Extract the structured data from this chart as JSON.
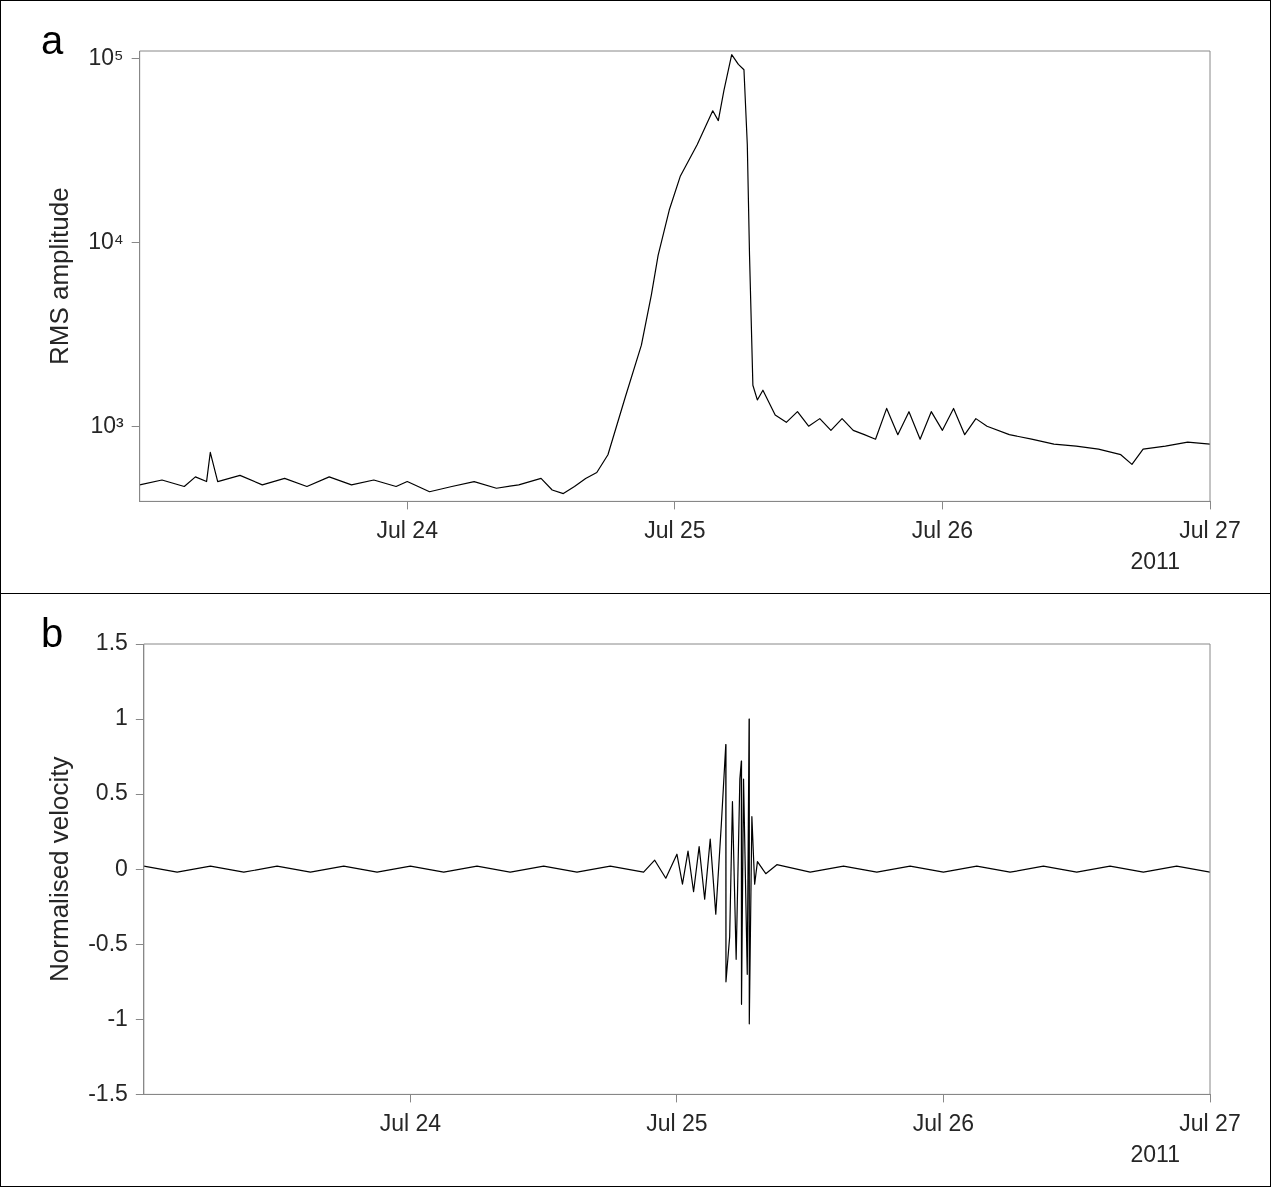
{
  "chart_data": [
    {
      "type": "line",
      "title": "a",
      "ylabel": "RMS amplitude",
      "annotations": [
        "2011"
      ],
      "log": true,
      "grid": false,
      "legend": false,
      "marker": "none",
      "line_style": "solid",
      "xlim": [
        "2011-07-23",
        "2011-07-27"
      ],
      "xticks": [
        {
          "value": "2011-07-24",
          "label": "Jul 24"
        },
        {
          "value": "2011-07-25",
          "label": "Jul 25"
        },
        {
          "value": "2011-07-26",
          "label": "Jul 26"
        },
        {
          "value": "2011-07-27",
          "label": "Jul 27"
        }
      ],
      "ylim": [
        390,
        110000
      ],
      "yticks": [
        {
          "value": 1000,
          "label": "10³"
        },
        {
          "value": 10000,
          "label": "10⁴"
        },
        {
          "value": 100000,
          "label": "10⁵"
        }
      ],
      "x": [
        "2011-07-23T00:00",
        "2011-07-23T02:00",
        "2011-07-23T04:00",
        "2011-07-23T05:00",
        "2011-07-23T06:00",
        "2011-07-23T06:20",
        "2011-07-23T07:00",
        "2011-07-23T09:00",
        "2011-07-23T11:00",
        "2011-07-23T13:00",
        "2011-07-23T15:00",
        "2011-07-23T17:00",
        "2011-07-23T19:00",
        "2011-07-23T21:00",
        "2011-07-23T23:00",
        "2011-07-24T00:00",
        "2011-07-24T02:00",
        "2011-07-24T04:00",
        "2011-07-24T06:00",
        "2011-07-24T08:00",
        "2011-07-24T10:00",
        "2011-07-24T12:00",
        "2011-07-24T13:00",
        "2011-07-24T14:00",
        "2011-07-24T15:00",
        "2011-07-24T16:00",
        "2011-07-24T17:00",
        "2011-07-24T18:00",
        "2011-07-24T19:36",
        "2011-07-24T21:00",
        "2011-07-24T21:54",
        "2011-07-24T22:30",
        "2011-07-24T23:30",
        "2011-07-25T00:30",
        "2011-07-25T02:00",
        "2011-07-25T03:24",
        "2011-07-25T03:54",
        "2011-07-25T04:24",
        "2011-07-25T05:06",
        "2011-07-25T05:42",
        "2011-07-25T06:12",
        "2011-07-25T06:30",
        "2011-07-25T06:42",
        "2011-07-25T07:00",
        "2011-07-25T07:24",
        "2011-07-25T07:54",
        "2011-07-25T09:00",
        "2011-07-25T10:00",
        "2011-07-25T11:00",
        "2011-07-25T12:00",
        "2011-07-25T13:00",
        "2011-07-25T14:00",
        "2011-07-25T15:00",
        "2011-07-25T16:00",
        "2011-07-25T17:00",
        "2011-07-25T18:00",
        "2011-07-25T19:00",
        "2011-07-25T20:00",
        "2011-07-25T21:00",
        "2011-07-25T22:00",
        "2011-07-25T23:00",
        "2011-07-26T00:00",
        "2011-07-26T01:00",
        "2011-07-26T02:00",
        "2011-07-26T03:00",
        "2011-07-26T04:00",
        "2011-07-26T06:00",
        "2011-07-26T08:00",
        "2011-07-26T10:00",
        "2011-07-26T12:00",
        "2011-07-26T14:00",
        "2011-07-26T16:00",
        "2011-07-26T17:00",
        "2011-07-26T18:00",
        "2011-07-26T20:00",
        "2011-07-26T22:00",
        "2011-07-27T00:00"
      ],
      "series": [
        {
          "color": "#000000",
          "values": [
            480,
            510,
            470,
            530,
            500,
            720,
            500,
            540,
            480,
            520,
            470,
            530,
            480,
            510,
            470,
            500,
            440,
            470,
            500,
            460,
            480,
            520,
            450,
            430,
            470,
            520,
            560,
            700,
            1470,
            2760,
            5200,
            8500,
            15000,
            23000,
            34000,
            52000,
            46000,
            67000,
            105000,
            93000,
            87000,
            34000,
            8500,
            1670,
            1390,
            1570,
            1150,
            1050,
            1200,
            1000,
            1100,
            950,
            1100,
            950,
            900,
            850,
            1250,
            900,
            1200,
            850,
            1200,
            950,
            1250,
            900,
            1100,
            1000,
            900,
            850,
            800,
            780,
            750,
            700,
            620,
            750,
            780,
            820,
            800
          ]
        }
      ]
    },
    {
      "type": "line",
      "title": "b",
      "ylabel": "Normalised velocity",
      "annotations": [
        "2011"
      ],
      "grid": false,
      "legend": false,
      "marker": "none",
      "line_style": "solid",
      "xlim": [
        "2011-07-23",
        "2011-07-27"
      ],
      "xticks": [
        {
          "value": "2011-07-24",
          "label": "Jul 24"
        },
        {
          "value": "2011-07-25",
          "label": "Jul 25"
        },
        {
          "value": "2011-07-26",
          "label": "Jul 26"
        },
        {
          "value": "2011-07-27",
          "label": "Jul 27"
        }
      ],
      "ylim": [
        -1.5,
        1.5
      ],
      "yticks": [
        -1.5,
        -1,
        -0.5,
        0,
        0.5,
        1,
        1.5
      ],
      "x": [
        "2011-07-23T00:00",
        "2011-07-23T03:00",
        "2011-07-23T06:00",
        "2011-07-23T09:00",
        "2011-07-23T12:00",
        "2011-07-23T15:00",
        "2011-07-23T18:00",
        "2011-07-23T21:00",
        "2011-07-24T00:00",
        "2011-07-24T03:00",
        "2011-07-24T06:00",
        "2011-07-24T09:00",
        "2011-07-24T12:00",
        "2011-07-24T15:00",
        "2011-07-24T18:00",
        "2011-07-24T21:00",
        "2011-07-24T22:00",
        "2011-07-24T23:00",
        "2011-07-25T00:00",
        "2011-07-25T00:30",
        "2011-07-25T01:00",
        "2011-07-25T01:30",
        "2011-07-25T02:00",
        "2011-07-25T02:30",
        "2011-07-25T03:00",
        "2011-07-25T03:30",
        "2011-07-25T04:00",
        "2011-07-25T04:24",
        "2011-07-25T04:25",
        "2011-07-25T04:45",
        "2011-07-25T05:00",
        "2011-07-25T05:20",
        "2011-07-25T05:40",
        "2011-07-25T05:48",
        "2011-07-25T05:49",
        "2011-07-25T06:00",
        "2011-07-25T06:20",
        "2011-07-25T06:30",
        "2011-07-25T06:31",
        "2011-07-25T06:45",
        "2011-07-25T07:00",
        "2011-07-25T07:15",
        "2011-07-25T08:00",
        "2011-07-25T09:00",
        "2011-07-25T12:00",
        "2011-07-25T15:00",
        "2011-07-25T18:00",
        "2011-07-25T21:00",
        "2011-07-26T00:00",
        "2011-07-26T03:00",
        "2011-07-26T06:00",
        "2011-07-26T09:00",
        "2011-07-26T12:00",
        "2011-07-26T15:00",
        "2011-07-26T18:00",
        "2011-07-26T21:00",
        "2011-07-27T00:00"
      ],
      "series": [
        {
          "color": "#000000",
          "values": [
            0.02,
            -0.02,
            0.02,
            -0.02,
            0.02,
            -0.02,
            0.02,
            -0.02,
            0.02,
            -0.02,
            0.02,
            -0.02,
            0.02,
            -0.02,
            0.02,
            -0.02,
            0.06,
            -0.06,
            0.1,
            -0.1,
            0.12,
            -0.15,
            0.15,
            -0.2,
            0.2,
            -0.3,
            0.3,
            0.83,
            -0.75,
            -0.45,
            0.45,
            -0.6,
            0.6,
            0.72,
            -0.9,
            0.6,
            -0.7,
            1,
            -1.03,
            0.35,
            -0.1,
            0.05,
            -0.03,
            0.03,
            -0.02,
            0.02,
            -0.02,
            0.02,
            -0.02,
            0.02,
            -0.02,
            0.02,
            -0.02,
            0.02,
            -0.02,
            0.02,
            -0.02
          ]
        }
      ]
    }
  ]
}
